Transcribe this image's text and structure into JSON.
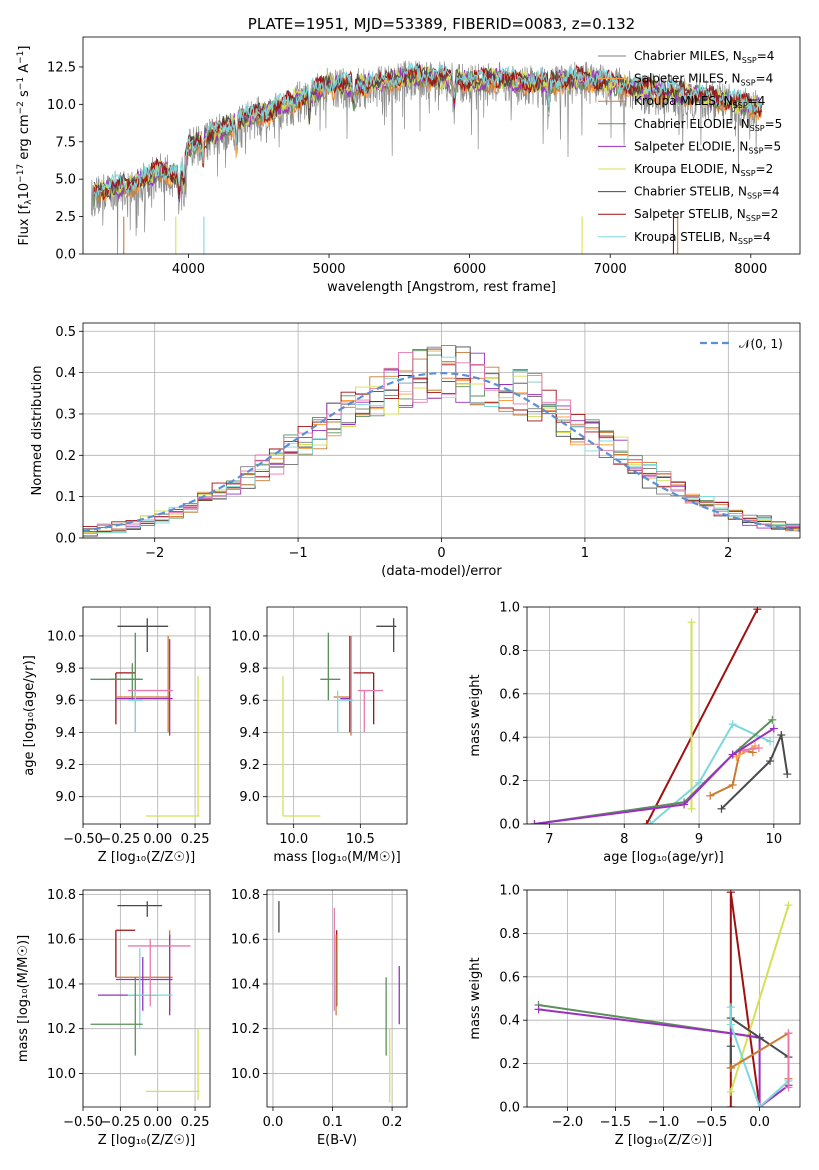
{
  "chart_data": [
    {
      "type": "line",
      "panel": "spectrum",
      "title": "PLATE=1951, MJD=53389, FIBERID=0083, z=0.132",
      "xlabel": "wavelength [Angstrom, rest frame]",
      "ylabel": "Flux [f$_\\lambda$10$^{-17}$ erg cm$^{-2}$ s$^{-1}$ A$^{-1}$]",
      "ylabel_parts": [
        "Flux [f",
        "λ",
        "10",
        "−17",
        " erg cm",
        "−2",
        " s",
        "−1",
        " A",
        "−1",
        "]"
      ],
      "xlim": [
        3250,
        8350
      ],
      "ylim": [
        0,
        14.5
      ],
      "xticks": [
        "4000",
        "5000",
        "6000",
        "7000",
        "8000"
      ],
      "yticks": [
        "0.0",
        "2.5",
        "5.0",
        "7.5",
        "10.0",
        "12.5"
      ],
      "series": [
        {
          "name": "Chabrier MILES, N$_{SSP}$=4",
          "name_main": "Chabrier MILES, N",
          "name_sub": "SSP",
          "name_tail": "=4",
          "color": "#808080"
        },
        {
          "name": "Salpeter MILES, N$_{SSP}$=4",
          "name_main": "Salpeter MILES, N",
          "name_sub": "SSP",
          "name_tail": "=4",
          "color": "#ff9f40"
        },
        {
          "name": "Kroupa MILES, N$_{SSP}$=4",
          "name_main": "Kroupa MILES, N",
          "name_sub": "SSP",
          "name_tail": "=4",
          "color": "#cc7a33"
        },
        {
          "name": "Chabrier ELODIE, N$_{SSP}$=5",
          "name_main": "Chabrier ELODIE, N",
          "name_sub": "SSP",
          "name_tail": "=5",
          "color": "#5c8f5c"
        },
        {
          "name": "Salpeter ELODIE, N$_{SSP}$=5",
          "name_main": "Salpeter ELODIE, N",
          "name_sub": "SSP",
          "name_tail": "=5",
          "color": "#9b30c0"
        },
        {
          "name": "Kroupa ELODIE, N$_{SSP}$=2",
          "name_main": "Kroupa ELODIE, N",
          "name_sub": "SSP",
          "name_tail": "=2",
          "color": "#d4e157"
        },
        {
          "name": "Chabrier STELIB, N$_{SSP}$=4",
          "name_main": "Chabrier STELIB, N",
          "name_sub": "SSP",
          "name_tail": "=4",
          "color": "#4a4a4a"
        },
        {
          "name": "Salpeter STELIB, N$_{SSP}$=2",
          "name_main": "Salpeter STELIB, N",
          "name_sub": "SSP",
          "name_tail": "=2",
          "color": "#a01010"
        },
        {
          "name": "Kroupa STELIB, N$_{SSP}$=4",
          "name_main": "Kroupa STELIB, N",
          "name_sub": "SSP",
          "name_tail": "=4",
          "color": "#7fd8dc"
        }
      ],
      "approx_model_curve": {
        "x": [
          3300,
          3400,
          3600,
          3800,
          3950,
          4000,
          4200,
          4400,
          4600,
          4800,
          5000,
          5200,
          5400,
          5600,
          5800,
          6000,
          6200,
          6400,
          6600,
          6800,
          7000,
          7200,
          7400,
          7600,
          7800,
          8000,
          8100
        ],
        "y": [
          3.9,
          4.3,
          4.6,
          5.6,
          5.2,
          7.2,
          8.1,
          9.1,
          9.6,
          10.4,
          11.3,
          11.2,
          11.5,
          11.9,
          11.7,
          11.5,
          11.7,
          11.4,
          11.5,
          11.7,
          11.4,
          11.0,
          10.8,
          10.6,
          10.3,
          9.9,
          9.7
        ]
      }
    },
    {
      "type": "step",
      "panel": "residual-distribution",
      "xlabel": "(data-model)/error",
      "ylabel": "Normed distribution",
      "xlim": [
        -2.5,
        2.5
      ],
      "ylim": [
        0,
        0.52
      ],
      "xticks": [
        "−2",
        "−1",
        "0",
        "1",
        "2"
      ],
      "yticks": [
        "0.0",
        "0.1",
        "0.2",
        "0.3",
        "0.4",
        "0.5"
      ],
      "legend": "$\\mathcal{N}(0,1)$",
      "legend_text": "𝒩(0, 1)",
      "legend_color": "#5b8fd6",
      "bin_width": 0.1
    },
    {
      "type": "errorbar",
      "panel": "age-vs-Z",
      "xlabel": "Z [log$_{10}$(Z/Z$_\\odot$)]",
      "xlabel_text": "Z [log₁₀(Z/Z☉)]",
      "ylabel": "age  [log$_{10}$(age/yr)]",
      "ylabel_text": "age  [log₁₀(age/yr)]",
      "xlim": [
        -0.5,
        0.35
      ],
      "ylim": [
        8.83,
        10.18
      ],
      "xticks": [
        "−0.50",
        "−0.25",
        "0.00",
        "0.25"
      ],
      "yticks": [
        "9.0",
        "9.2",
        "9.4",
        "9.6",
        "9.8",
        "10.0"
      ],
      "points": [
        {
          "x": -0.07,
          "xl": -0.27,
          "xh": 0.07,
          "y": 10.06,
          "yl": 9.9,
          "yh": 10.11,
          "color": "#4a4a4a"
        },
        {
          "x": -0.28,
          "xl": -0.28,
          "xh": -0.15,
          "y": 9.77,
          "yl": 9.45,
          "yh": 9.77,
          "color": "#a01010"
        },
        {
          "x": -0.17,
          "xl": -0.32,
          "xh": -0.12,
          "y": 9.73,
          "yl": 9.6,
          "yh": 9.83,
          "color": "#5c8f5c"
        },
        {
          "x": -0.15,
          "xl": -0.45,
          "xh": -0.1,
          "y": 9.73,
          "yl": 9.58,
          "yh": 10.02,
          "color": "#5c8f5c"
        },
        {
          "x": 0.07,
          "xl": -0.28,
          "xh": 0.08,
          "y": 9.62,
          "yl": 9.4,
          "yh": 10.0,
          "color": "#cc7a33"
        },
        {
          "x": 0.08,
          "xl": -0.28,
          "xh": 0.1,
          "y": 9.61,
          "yl": 9.38,
          "yh": 9.98,
          "color": "#9b30c0"
        },
        {
          "x": -0.15,
          "xl": -0.2,
          "xh": 0.1,
          "y": 9.66,
          "yl": 9.4,
          "yh": 9.66,
          "color": "#e87ab0"
        },
        {
          "x": -0.15,
          "xl": -0.2,
          "xh": -0.1,
          "y": 9.6,
          "yl": 9.4,
          "yh": 9.66,
          "color": "#7fd8dc"
        },
        {
          "x": 0.27,
          "xl": -0.08,
          "xh": 0.28,
          "y": 8.88,
          "yl": 8.88,
          "yh": 9.75,
          "color": "#d4e157"
        }
      ]
    },
    {
      "type": "errorbar",
      "panel": "age-vs-mass",
      "xlabel": "mass [log$_{10}$(M/M$_\\odot$)]",
      "xlabel_text": "mass [log₁₀(M/M☉)]",
      "ylabel": "",
      "xlim": [
        9.8,
        10.85
      ],
      "ylim": [
        8.83,
        10.18
      ],
      "xticks": [
        "10.0",
        "10.5"
      ],
      "yticks": [
        "9.0",
        "9.2",
        "9.4",
        "9.6",
        "9.8",
        "10.0"
      ],
      "points": [
        {
          "x": 10.75,
          "xl": 10.62,
          "xh": 10.77,
          "y": 10.06,
          "yl": 9.9,
          "yh": 10.11,
          "color": "#4a4a4a"
        },
        {
          "x": 10.6,
          "xl": 10.45,
          "xh": 10.6,
          "y": 9.77,
          "yl": 9.45,
          "yh": 9.77,
          "color": "#a01010"
        },
        {
          "x": 10.26,
          "xl": 10.2,
          "xh": 10.35,
          "y": 9.73,
          "yl": 9.6,
          "yh": 10.02,
          "color": "#5c8f5c"
        },
        {
          "x": 10.43,
          "xl": 10.3,
          "xh": 10.43,
          "y": 9.62,
          "yl": 9.38,
          "yh": 10.0,
          "color": "#cc7a33"
        },
        {
          "x": 10.42,
          "xl": 10.35,
          "xh": 10.42,
          "y": 9.61,
          "yl": 9.4,
          "yh": 10.0,
          "color": "#9b30c0"
        },
        {
          "x": 10.53,
          "xl": 10.48,
          "xh": 10.67,
          "y": 9.66,
          "yl": 9.4,
          "yh": 9.66,
          "color": "#e87ab0"
        },
        {
          "x": 10.33,
          "xl": 10.33,
          "xh": 10.45,
          "y": 9.6,
          "yl": 9.4,
          "yh": 9.66,
          "color": "#7fd8dc"
        },
        {
          "x": 9.92,
          "xl": 9.92,
          "xh": 10.2,
          "y": 8.88,
          "yl": 8.88,
          "yh": 9.75,
          "color": "#d4e157"
        }
      ]
    },
    {
      "type": "line",
      "panel": "mass-weight-vs-age",
      "xlabel": "age  [log$_{10}$(age/yr)]",
      "xlabel_text": "age  [log₁₀(age/yr)]",
      "ylabel": "mass weight",
      "xlim": [
        6.7,
        10.35
      ],
      "ylim": [
        0,
        1.0
      ],
      "xticks": [
        "7",
        "8",
        "9",
        "10"
      ],
      "yticks": [
        "0.0",
        "0.2",
        "0.4",
        "0.6",
        "0.8",
        "1.0"
      ],
      "series": [
        {
          "color": "#a01010",
          "x": [
            8.3,
            9.78
          ],
          "y": [
            0.0,
            0.99
          ]
        },
        {
          "color": "#d4e157",
          "x": [
            8.9,
            8.9
          ],
          "y": [
            0.07,
            0.93
          ]
        },
        {
          "color": "#7fd8dc",
          "x": [
            8.35,
            9.0,
            9.45,
            9.95
          ],
          "y": [
            0.0,
            0.19,
            0.46,
            0.38
          ]
        },
        {
          "color": "#4a4a4a",
          "x": [
            9.3,
            9.95,
            10.1,
            10.18
          ],
          "y": [
            0.07,
            0.29,
            0.41,
            0.23
          ]
        },
        {
          "color": "#cc7a33",
          "x": [
            9.15,
            9.45,
            9.55,
            9.72
          ],
          "y": [
            0.13,
            0.18,
            0.34,
            0.33
          ]
        },
        {
          "color": "#ff9f40",
          "x": [
            9.5,
            9.75
          ],
          "y": [
            0.31,
            0.36
          ]
        },
        {
          "color": "#e87ab0",
          "x": [
            9.6,
            9.8
          ],
          "y": [
            0.34,
            0.35
          ]
        },
        {
          "color": "#5c8f5c",
          "x": [
            6.8,
            8.8,
            9.45,
            9.98
          ],
          "y": [
            0.0,
            0.1,
            0.32,
            0.48
          ]
        },
        {
          "color": "#9b30c0",
          "x": [
            6.8,
            8.8,
            9.45,
            10.0
          ],
          "y": [
            0.0,
            0.09,
            0.32,
            0.44
          ]
        }
      ]
    },
    {
      "type": "errorbar",
      "panel": "mass-vs-Z",
      "xlabel": "Z [log$_{10}$(Z/Z$_\\odot$)]",
      "xlabel_text": "Z [log₁₀(Z/Z☉)]",
      "ylabel": "mass [log$_{10}$(M/M$_\\odot$)]",
      "ylabel_text": "mass [log₁₀(M/M☉)]",
      "xlim": [
        -0.5,
        0.35
      ],
      "ylim": [
        9.85,
        10.82
      ],
      "xticks": [
        "−0.50",
        "−0.25",
        "0.00",
        "0.25"
      ],
      "yticks": [
        "10.0",
        "10.2",
        "10.4",
        "10.6",
        "10.8"
      ],
      "points": [
        {
          "x": -0.07,
          "xl": -0.27,
          "xh": 0.03,
          "y": 10.75,
          "yl": 10.7,
          "yh": 10.77,
          "color": "#4a4a4a"
        },
        {
          "x": -0.28,
          "xl": -0.28,
          "xh": -0.15,
          "y": 10.64,
          "yl": 10.43,
          "yh": 10.64,
          "color": "#a01010"
        },
        {
          "x": 0.08,
          "xl": -0.28,
          "xh": 0.1,
          "y": 10.43,
          "yl": 10.28,
          "yh": 10.64,
          "color": "#cc7a33"
        },
        {
          "x": 0.08,
          "xl": -0.28,
          "xh": 0.1,
          "y": 10.42,
          "yl": 10.26,
          "yh": 10.62,
          "color": "#9b30c0"
        },
        {
          "x": -0.1,
          "xl": -0.4,
          "xh": 0.0,
          "y": 10.35,
          "yl": 10.28,
          "yh": 10.52,
          "color": "#9b30c0"
        },
        {
          "x": -0.12,
          "xl": -0.2,
          "xh": 0.1,
          "y": 10.35,
          "yl": 10.2,
          "yh": 10.56,
          "color": "#7fd8dc"
        },
        {
          "x": -0.05,
          "xl": -0.2,
          "xh": 0.22,
          "y": 10.57,
          "yl": 10.3,
          "yh": 10.6,
          "color": "#e87ab0"
        },
        {
          "x": -0.15,
          "xl": -0.45,
          "xh": -0.1,
          "y": 10.22,
          "yl": 10.08,
          "yh": 10.43,
          "color": "#5c8f5c"
        },
        {
          "x": 0.27,
          "xl": -0.08,
          "xh": 0.28,
          "y": 9.92,
          "yl": 9.88,
          "yh": 10.2,
          "color": "#d4e157"
        }
      ]
    },
    {
      "type": "errorbar",
      "panel": "mass-vs-EBV",
      "xlabel": "E(B-V)",
      "ylabel": "",
      "xlim": [
        -0.01,
        0.225
      ],
      "ylim": [
        9.85,
        10.82
      ],
      "xticks": [
        "0.0",
        "0.1",
        "0.2"
      ],
      "yticks": [
        "10.0",
        "10.2",
        "10.4",
        "10.6",
        "10.8"
      ],
      "points": [
        {
          "x": 0.01,
          "xl": 0.01,
          "xh": 0.01,
          "y": 10.75,
          "yl": 10.63,
          "yh": 10.77,
          "color": "#4a4a4a"
        },
        {
          "x": 0.107,
          "xl": 0.107,
          "xh": 0.107,
          "y": 10.6,
          "yl": 10.3,
          "yh": 10.64,
          "color": "#a01010"
        },
        {
          "x": 0.103,
          "xl": 0.103,
          "xh": 0.103,
          "y": 10.5,
          "yl": 10.28,
          "yh": 10.74,
          "color": "#e87ab0"
        },
        {
          "x": 0.106,
          "xl": 0.106,
          "xh": 0.106,
          "y": 10.45,
          "yl": 10.26,
          "yh": 10.62,
          "color": "#cc7a33"
        },
        {
          "x": 0.105,
          "xl": 0.105,
          "xh": 0.105,
          "y": 10.4,
          "yl": 10.28,
          "yh": 10.55,
          "color": "#7fd8dc"
        },
        {
          "x": 0.19,
          "xl": 0.19,
          "xh": 0.19,
          "y": 10.25,
          "yl": 10.08,
          "yh": 10.43,
          "color": "#5c8f5c"
        },
        {
          "x": 0.212,
          "xl": 0.212,
          "xh": 0.212,
          "y": 10.35,
          "yl": 10.22,
          "yh": 10.48,
          "color": "#9b30c0"
        },
        {
          "x": 0.196,
          "xl": 0.196,
          "xh": 0.196,
          "y": 10.05,
          "yl": 9.87,
          "yh": 10.2,
          "color": "#d4e157"
        }
      ]
    },
    {
      "type": "line",
      "panel": "mass-weight-vs-Z",
      "xlabel": "Z [log$_{10}$(Z/Z$_\\odot$)]",
      "xlabel_text": "Z [log₁₀(Z/Z☉)]",
      "ylabel": "mass weight",
      "xlim": [
        -2.42,
        0.42
      ],
      "ylim": [
        0,
        1.0
      ],
      "xticks": [
        "−2.0",
        "−1.5",
        "−1.0",
        "−0.5",
        "0.0"
      ],
      "yticks": [
        "0.0",
        "0.2",
        "0.4",
        "0.6",
        "0.8",
        "1.0"
      ],
      "series": [
        {
          "color": "#a01010",
          "x": [
            -0.3,
            -0.3,
            0.0
          ],
          "y": [
            0.0,
            0.99,
            0.0
          ]
        },
        {
          "color": "#d4e157",
          "x": [
            -0.3,
            0.3
          ],
          "y": [
            0.07,
            0.93
          ]
        },
        {
          "color": "#5c8f5c",
          "x": [
            -2.3,
            -0.3,
            0.0
          ],
          "y": [
            0.47,
            0.34,
            0.32
          ]
        },
        {
          "color": "#9b30c0",
          "x": [
            -2.3,
            -0.3,
            0.0,
            0.0,
            0.3
          ],
          "y": [
            0.45,
            0.34,
            0.32,
            0.0,
            0.1
          ]
        },
        {
          "color": "#4a4a4a",
          "x": [
            -0.3,
            0.0,
            0.3
          ],
          "y": [
            0.41,
            0.32,
            0.23
          ]
        },
        {
          "color": "#4a4a4a",
          "x": [
            -0.3,
            -0.3
          ],
          "y": [
            0.18,
            0.28
          ]
        },
        {
          "color": "#7fd8dc",
          "x": [
            -0.3,
            -0.3,
            0.0,
            0.3
          ],
          "y": [
            0.46,
            0.38,
            0.0,
            0.12
          ]
        },
        {
          "color": "#cc7a33",
          "x": [
            -0.3,
            0.3,
            0.3
          ],
          "y": [
            0.18,
            0.34,
            0.13
          ]
        },
        {
          "color": "#e87ab0",
          "x": [
            0.3,
            0.3
          ],
          "y": [
            0.34,
            0.09
          ]
        }
      ]
    }
  ]
}
